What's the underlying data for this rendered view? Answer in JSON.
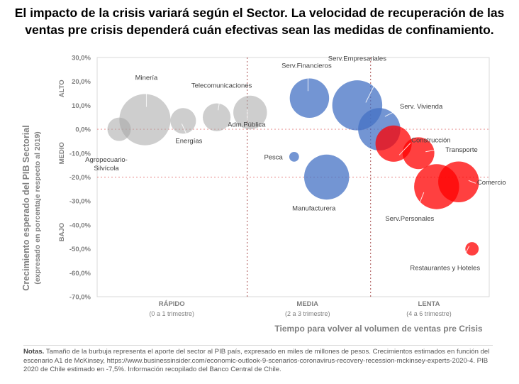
{
  "title": {
    "line1": "El impacto de la crisis variará según el Sector. La velocidad de recuperación de las",
    "line2": "ventas pre crisis dependerá cuán efectivas sean las medidas de confinamiento."
  },
  "chart_data": {
    "type": "bubble",
    "ylabel_line1": "Crecimiento esperado del PIB Sectorial",
    "ylabel_line2": "(expresado en porcentaje respecto al 2019)",
    "xlabel": "Tiempo para volver al volumen de ventas pre Crisis",
    "ylim": [
      -70,
      30
    ],
    "yticks": [
      30,
      20,
      10,
      0,
      -10,
      -20,
      -30,
      -40,
      -50,
      -60,
      -70
    ],
    "ytick_labels": [
      "30,0%",
      "20,0%",
      "10,0%",
      "0,0%",
      "-10,0%",
      "-20,0%",
      "-30,0%",
      "-40,0%",
      "-50,0%",
      "-60,0%",
      "-70,0%"
    ],
    "reference_lines_y": [
      0,
      -20
    ],
    "y_bands": [
      {
        "label": "ALTO",
        "y": 17
      },
      {
        "label": "MEDIO",
        "y": -10
      },
      {
        "label": "BAJO",
        "y": -43
      }
    ],
    "x_groups": [
      {
        "label": "RÁPIDO",
        "sublabel": "(0 a 1 trimestre)"
      },
      {
        "label": "MEDIA",
        "sublabel": "(2 a 3 trimestre)"
      },
      {
        "label": "LENTA",
        "sublabel": "(4 a 6 trimestre)"
      }
    ],
    "colors": {
      "rapido": "#a6a6a6",
      "media": "#4472c4",
      "lenta": "#ff0000",
      "axis_text": "#7f7f7f",
      "refline": "#e06666"
    },
    "series": [
      {
        "name": "Agropecuario-Silvícola",
        "label_lines": [
          "Agropecuario-",
          "Silvícola"
        ],
        "group": "rapido",
        "x": 0.23,
        "y": 0,
        "size": 4.6
      },
      {
        "name": "Minería",
        "label_lines": [
          "Minería"
        ],
        "group": "rapido",
        "x": 0.5,
        "y": 4,
        "size": 22
      },
      {
        "name": "Energías",
        "label_lines": [
          "Energías"
        ],
        "group": "rapido",
        "x": 0.9,
        "y": 3.5,
        "size": 5.5
      },
      {
        "name": "Telecomunicaciones",
        "label_lines": [
          "Telecomunicaciones"
        ],
        "group": "rapido",
        "x": 1.25,
        "y": 5,
        "size": 6.5
      },
      {
        "name": "Adm.Pública",
        "label_lines": [
          "Adm.Pública"
        ],
        "group": "rapido",
        "x": 1.6,
        "y": 7,
        "size": 9.5
      },
      {
        "name": "Serv.Financieros",
        "label_lines": [
          "Serv.Financieros"
        ],
        "group": "media",
        "x": 2.22,
        "y": 13,
        "size": 13
      },
      {
        "name": "Pesca",
        "label_lines": [
          "Pesca"
        ],
        "group": "media",
        "x": 2.06,
        "y": -11.5,
        "size": 0.8
      },
      {
        "name": "Manufacturera",
        "label_lines": [
          "Manufacturera"
        ],
        "group": "media",
        "x": 2.4,
        "y": -20,
        "size": 17
      },
      {
        "name": "Serv.Empresariales",
        "label_lines": [
          "Serv.Empresariales"
        ],
        "group": "media",
        "x": 2.72,
        "y": 10,
        "size": 21
      },
      {
        "name": "Serv. Vivienda",
        "label_lines": [
          "Serv.  Vivienda"
        ],
        "group": "media",
        "x": 2.95,
        "y": 0,
        "size": 15
      },
      {
        "name": "Construcción",
        "label_lines": [
          "Construcción"
        ],
        "group": "lenta",
        "x": 3.1,
        "y": -6,
        "size": 11
      },
      {
        "name": "Transporte",
        "label_lines": [
          "Transporte"
        ],
        "group": "lenta",
        "x": 3.36,
        "y": -10,
        "size": 8.5
      },
      {
        "name": "Serv.Personales",
        "label_lines": [
          "Serv.Personales"
        ],
        "group": "lenta",
        "x": 3.55,
        "y": -24,
        "size": 17
      },
      {
        "name": "Comercio",
        "label_lines": [
          "Comercio"
        ],
        "group": "lenta",
        "x": 3.78,
        "y": -22,
        "size": 14
      },
      {
        "name": "Restaurantes y Hoteles",
        "label_lines": [
          "Restaurantes   y Hoteles"
        ],
        "group": "lenta",
        "x": 3.92,
        "y": -50,
        "size": 1.5
      }
    ]
  },
  "notes": {
    "label": "Notas.",
    "text": "Tamaño de la burbuja representa el aporte del sector al PIB país, expresado en miles de millones de pesos. Crecimientos estimados en función del escenario A1 de McKinsey, https://www.businessinsider.com/economic-outlook-9-scenarios-coronavirus-recovery-recession-mckinsey-experts-2020-4. PIB 2020 de Chile estimado en -7,5%. Información recopilado del Banco Central de Chile."
  }
}
